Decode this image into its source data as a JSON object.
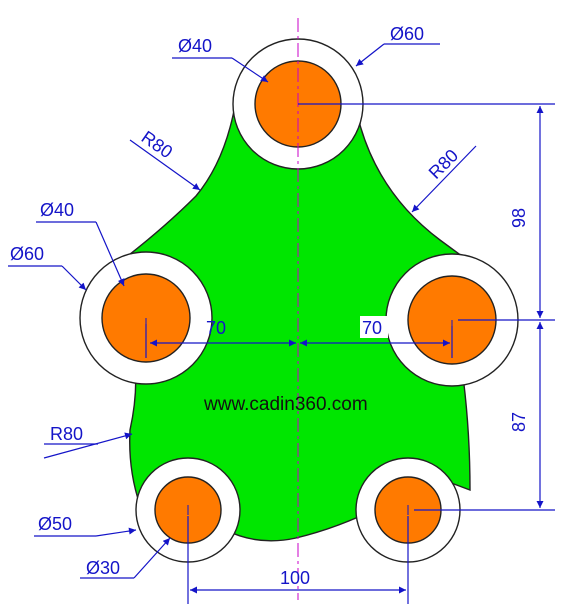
{
  "diagram": {
    "watermark": "www.cadin360.com",
    "colors": {
      "body_fill": "#00e600",
      "boss_ring": "#ffffff",
      "hole_fill": "#ff7a00",
      "dimension": "#1414c8",
      "centerline": "#c800c8"
    },
    "labels": {
      "top_hole_dia": "Ø40",
      "top_boss_dia": "Ø60",
      "left_arc_radius": "R80",
      "right_arc_radius": "R80",
      "left_hole_dia": "Ø40",
      "left_boss_dia": "Ø60",
      "left_offset": "70",
      "right_offset": "70",
      "vertical_top": "98",
      "vertical_bottom": "87",
      "bottom_arc_radius": "R80",
      "bottom_boss_dia": "Ø50",
      "bottom_hole_dia": "Ø30",
      "bottom_spacing": "100"
    }
  }
}
